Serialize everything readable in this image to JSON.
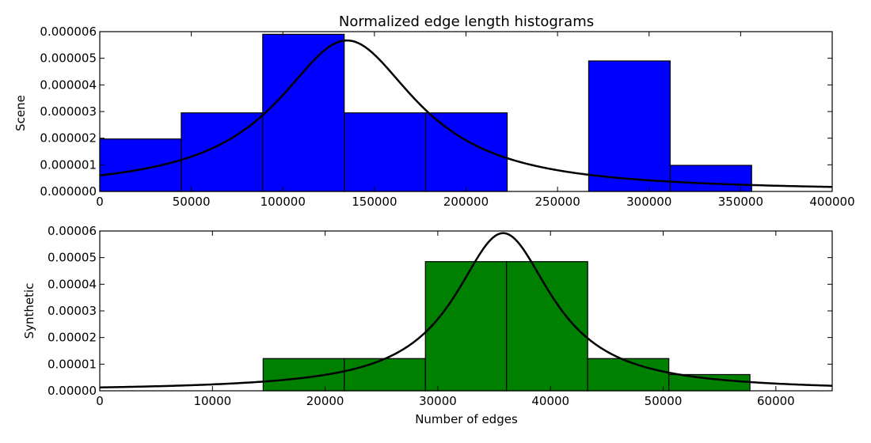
{
  "chart_data": [
    {
      "type": "bar",
      "title": "Normalized edge length histograms",
      "xlabel": "",
      "ylabel": "Scene",
      "xlim": [
        0,
        400000
      ],
      "ylim": [
        0,
        6e-06
      ],
      "bar_color": "#0000ff",
      "curve_color": "#000000",
      "grid": false,
      "x_ticks": [
        {
          "value": 0,
          "label": "0"
        },
        {
          "value": 50000,
          "label": "50000"
        },
        {
          "value": 100000,
          "label": "100000"
        },
        {
          "value": 150000,
          "label": "150000"
        },
        {
          "value": 200000,
          "label": "200000"
        },
        {
          "value": 250000,
          "label": "250000"
        },
        {
          "value": 300000,
          "label": "300000"
        },
        {
          "value": 350000,
          "label": "350000"
        },
        {
          "value": 400000,
          "label": "400000"
        }
      ],
      "y_ticks": [
        {
          "value": 0,
          "label": "0.000000"
        },
        {
          "value": 1e-06,
          "label": "0.000001"
        },
        {
          "value": 2e-06,
          "label": "0.000002"
        },
        {
          "value": 3e-06,
          "label": "0.000003"
        },
        {
          "value": 4e-06,
          "label": "0.000004"
        },
        {
          "value": 5e-06,
          "label": "0.000005"
        },
        {
          "value": 6e-06,
          "label": "0.000006"
        }
      ],
      "bins": [
        {
          "x0": 0,
          "x1": 44500,
          "value": 1.97e-06
        },
        {
          "x0": 44500,
          "x1": 89000,
          "value": 2.95e-06
        },
        {
          "x0": 89000,
          "x1": 133500,
          "value": 5.9e-06
        },
        {
          "x0": 133500,
          "x1": 178000,
          "value": 2.95e-06
        },
        {
          "x0": 178000,
          "x1": 222500,
          "value": 2.95e-06
        },
        {
          "x0": 267000,
          "x1": 311500,
          "value": 4.9e-06
        },
        {
          "x0": 311500,
          "x1": 356000,
          "value": 9.8e-07
        }
      ],
      "curve": {
        "kind": "cauchy",
        "center": 135000,
        "peak": 5.67e-06,
        "half_width": 46500
      }
    },
    {
      "type": "bar",
      "title": "",
      "xlabel": "Number of edges",
      "ylabel": "Synthetic",
      "xlim": [
        0,
        65000
      ],
      "ylim": [
        0,
        6e-05
      ],
      "bar_color": "#008000",
      "curve_color": "#000000",
      "grid": false,
      "x_ticks": [
        {
          "value": 0,
          "label": "0"
        },
        {
          "value": 10000,
          "label": "10000"
        },
        {
          "value": 20000,
          "label": "20000"
        },
        {
          "value": 30000,
          "label": "30000"
        },
        {
          "value": 40000,
          "label": "40000"
        },
        {
          "value": 50000,
          "label": "50000"
        },
        {
          "value": 60000,
          "label": "60000"
        }
      ],
      "y_ticks": [
        {
          "value": 0,
          "label": "0.00000"
        },
        {
          "value": 1e-05,
          "label": "0.00001"
        },
        {
          "value": 2e-05,
          "label": "0.00002"
        },
        {
          "value": 3e-05,
          "label": "0.00003"
        },
        {
          "value": 4e-05,
          "label": "0.00004"
        },
        {
          "value": 5e-05,
          "label": "0.00005"
        },
        {
          "value": 6e-05,
          "label": "0.00006"
        }
      ],
      "bins": [
        {
          "x0": 14500,
          "x1": 21700,
          "value": 1.21e-05
        },
        {
          "x0": 21700,
          "x1": 28900,
          "value": 1.21e-05
        },
        {
          "x0": 28900,
          "x1": 36100,
          "value": 4.85e-05
        },
        {
          "x0": 36100,
          "x1": 43300,
          "value": 4.85e-05
        },
        {
          "x0": 43300,
          "x1": 50500,
          "value": 1.21e-05
        },
        {
          "x0": 50500,
          "x1": 57700,
          "value": 6.1e-06
        }
      ],
      "curve": {
        "kind": "cauchy",
        "center": 35800,
        "peak": 5.92e-05,
        "half_width": 5300
      }
    }
  ]
}
